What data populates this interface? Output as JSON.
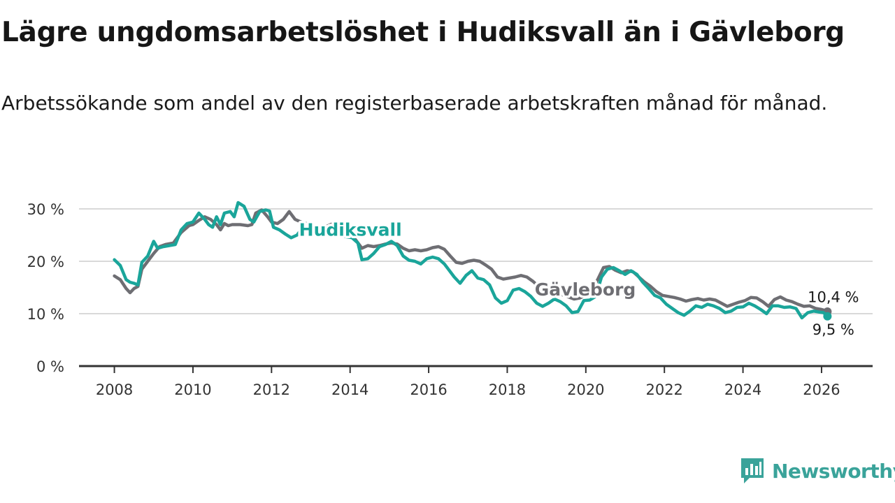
{
  "title": "Lägre ungdomsarbetslöshet i Hudiksvall än i Gävleborg",
  "subtitle": "Arbetssökande som andel av den registerbaserade arbetskraften månad för månad.",
  "brand": {
    "name": "Newsworthy",
    "icon": "newsworthy-logo-icon"
  },
  "colors": {
    "hudiksvall": "#1aa59a",
    "gavleborg": "#6e6e73",
    "grid": "#d9d9d9",
    "axis": "#333333"
  },
  "chart_data": {
    "type": "line",
    "title": "Lägre ungdomsarbetslöshet i Hudiksvall än i Gävleborg",
    "xlabel": "",
    "ylabel": "",
    "xlim": [
      2007.1,
      2027.3
    ],
    "ylim": [
      0,
      30
    ],
    "x_ticks": [
      2008,
      2010,
      2012,
      2014,
      2016,
      2018,
      2020,
      2022,
      2024,
      2026
    ],
    "x_tick_labels": [
      "2008",
      "2010",
      "2012",
      "2014",
      "2016",
      "2018",
      "2020",
      "2022",
      "2024",
      "2026"
    ],
    "y_ticks": [
      0,
      10,
      20,
      30
    ],
    "y_tick_labels": [
      "0 %",
      "10 %",
      "20 %",
      "30 %"
    ],
    "grid": true,
    "legend": "inline labels",
    "series": [
      {
        "name": "Gävleborg",
        "label": "Gävleborg",
        "end_label": "10,4 %",
        "color": "#6e6e73",
        "points": [
          [
            2008.0,
            17.2
          ],
          [
            2008.15,
            16.5
          ],
          [
            2008.3,
            14.8
          ],
          [
            2008.4,
            14.0
          ],
          [
            2008.5,
            14.8
          ],
          [
            2008.6,
            15.2
          ],
          [
            2008.7,
            18.5
          ],
          [
            2008.85,
            20.0
          ],
          [
            2009.0,
            21.5
          ],
          [
            2009.15,
            22.8
          ],
          [
            2009.3,
            23.2
          ],
          [
            2009.5,
            23.5
          ],
          [
            2009.7,
            25.5
          ],
          [
            2009.9,
            26.8
          ],
          [
            2010.0,
            27.0
          ],
          [
            2010.15,
            27.8
          ],
          [
            2010.3,
            28.5
          ],
          [
            2010.45,
            28.0
          ],
          [
            2010.6,
            27.0
          ],
          [
            2010.7,
            26.0
          ],
          [
            2010.8,
            27.2
          ],
          [
            2010.9,
            26.8
          ],
          [
            2011.0,
            27.0
          ],
          [
            2011.2,
            27.0
          ],
          [
            2011.4,
            26.8
          ],
          [
            2011.5,
            27.0
          ],
          [
            2011.6,
            29.2
          ],
          [
            2011.75,
            29.8
          ],
          [
            2011.9,
            28.5
          ],
          [
            2012.0,
            27.5
          ],
          [
            2012.15,
            27.2
          ],
          [
            2012.3,
            28.0
          ],
          [
            2012.45,
            29.5
          ],
          [
            2012.6,
            28.0
          ],
          [
            2012.75,
            27.5
          ],
          [
            2012.9,
            27.2
          ],
          [
            2013.05,
            26.5
          ],
          [
            2013.2,
            26.0
          ],
          [
            2013.35,
            26.5
          ],
          [
            2013.5,
            27.0
          ],
          [
            2013.65,
            27.4
          ],
          [
            2013.8,
            26.2
          ],
          [
            2014.0,
            25.5
          ],
          [
            2014.15,
            24.0
          ],
          [
            2014.3,
            22.5
          ],
          [
            2014.45,
            23.0
          ],
          [
            2014.6,
            22.8
          ],
          [
            2014.75,
            23.0
          ],
          [
            2014.9,
            23.3
          ],
          [
            2015.05,
            23.5
          ],
          [
            2015.2,
            23.3
          ],
          [
            2015.35,
            22.5
          ],
          [
            2015.5,
            22.0
          ],
          [
            2015.65,
            22.2
          ],
          [
            2015.8,
            22.0
          ],
          [
            2015.95,
            22.2
          ],
          [
            2016.1,
            22.6
          ],
          [
            2016.25,
            22.8
          ],
          [
            2016.4,
            22.3
          ],
          [
            2016.55,
            21.0
          ],
          [
            2016.7,
            19.8
          ],
          [
            2016.85,
            19.6
          ],
          [
            2017.0,
            20.0
          ],
          [
            2017.15,
            20.2
          ],
          [
            2017.3,
            20.0
          ],
          [
            2017.45,
            19.3
          ],
          [
            2017.6,
            18.5
          ],
          [
            2017.75,
            17.0
          ],
          [
            2017.9,
            16.6
          ],
          [
            2018.05,
            16.8
          ],
          [
            2018.2,
            17.0
          ],
          [
            2018.35,
            17.3
          ],
          [
            2018.5,
            17.0
          ],
          [
            2018.65,
            16.2
          ],
          [
            2018.8,
            15.2
          ],
          [
            2018.95,
            14.2
          ],
          [
            2019.1,
            13.8
          ],
          [
            2019.25,
            14.0
          ],
          [
            2019.4,
            13.6
          ],
          [
            2019.55,
            13.2
          ],
          [
            2019.7,
            12.8
          ],
          [
            2019.85,
            13.0
          ],
          [
            2020.0,
            13.5
          ],
          [
            2020.15,
            14.5
          ],
          [
            2020.3,
            16.5
          ],
          [
            2020.45,
            18.8
          ],
          [
            2020.6,
            19.0
          ],
          [
            2020.75,
            18.3
          ],
          [
            2020.9,
            17.8
          ],
          [
            2021.05,
            18.2
          ],
          [
            2021.2,
            18.0
          ],
          [
            2021.35,
            17.0
          ],
          [
            2021.5,
            16.0
          ],
          [
            2021.65,
            15.2
          ],
          [
            2021.8,
            14.2
          ],
          [
            2021.95,
            13.5
          ],
          [
            2022.1,
            13.3
          ],
          [
            2022.25,
            13.1
          ],
          [
            2022.4,
            12.8
          ],
          [
            2022.55,
            12.4
          ],
          [
            2022.7,
            12.7
          ],
          [
            2022.85,
            12.9
          ],
          [
            2023.0,
            12.6
          ],
          [
            2023.15,
            12.8
          ],
          [
            2023.3,
            12.6
          ],
          [
            2023.45,
            12.0
          ],
          [
            2023.6,
            11.4
          ],
          [
            2023.75,
            11.8
          ],
          [
            2023.9,
            12.2
          ],
          [
            2024.05,
            12.5
          ],
          [
            2024.2,
            13.1
          ],
          [
            2024.35,
            13.0
          ],
          [
            2024.5,
            12.3
          ],
          [
            2024.65,
            11.4
          ],
          [
            2024.8,
            12.7
          ],
          [
            2024.95,
            13.2
          ],
          [
            2025.1,
            12.6
          ],
          [
            2025.25,
            12.3
          ],
          [
            2025.4,
            11.8
          ],
          [
            2025.55,
            11.4
          ],
          [
            2025.7,
            11.5
          ],
          [
            2025.85,
            11.0
          ],
          [
            2026.0,
            10.8
          ],
          [
            2026.1,
            10.6
          ],
          [
            2026.15,
            10.4
          ]
        ]
      },
      {
        "name": "Hudiksvall",
        "label": "Hudiksvall",
        "end_label": "9,5 %",
        "color": "#1aa59a",
        "points": [
          [
            2008.0,
            20.3
          ],
          [
            2008.15,
            19.2
          ],
          [
            2008.3,
            16.5
          ],
          [
            2008.4,
            16.0
          ],
          [
            2008.5,
            15.8
          ],
          [
            2008.6,
            15.5
          ],
          [
            2008.7,
            19.8
          ],
          [
            2008.85,
            21.0
          ],
          [
            2009.0,
            23.8
          ],
          [
            2009.1,
            22.5
          ],
          [
            2009.25,
            22.8
          ],
          [
            2009.4,
            23.0
          ],
          [
            2009.55,
            23.2
          ],
          [
            2009.7,
            26.0
          ],
          [
            2009.85,
            27.2
          ],
          [
            2010.0,
            27.5
          ],
          [
            2010.15,
            29.2
          ],
          [
            2010.3,
            28.0
          ],
          [
            2010.4,
            27.0
          ],
          [
            2010.5,
            26.5
          ],
          [
            2010.6,
            28.5
          ],
          [
            2010.7,
            27.0
          ],
          [
            2010.8,
            29.2
          ],
          [
            2010.95,
            29.5
          ],
          [
            2011.05,
            28.5
          ],
          [
            2011.15,
            31.2
          ],
          [
            2011.3,
            30.5
          ],
          [
            2011.45,
            28.0
          ],
          [
            2011.55,
            27.5
          ],
          [
            2011.7,
            29.5
          ],
          [
            2011.85,
            29.8
          ],
          [
            2011.95,
            29.6
          ],
          [
            2012.05,
            26.5
          ],
          [
            2012.2,
            26.0
          ],
          [
            2012.35,
            25.2
          ],
          [
            2012.5,
            24.5
          ],
          [
            2012.65,
            25.0
          ],
          [
            2012.8,
            26.5
          ],
          [
            2012.9,
            27.0
          ],
          [
            2013.05,
            26.0
          ],
          [
            2013.3,
            25.5
          ],
          [
            2013.55,
            25.0
          ],
          [
            2013.8,
            24.8
          ],
          [
            2014.05,
            24.5
          ],
          [
            2014.2,
            23.5
          ],
          [
            2014.3,
            20.3
          ],
          [
            2014.45,
            20.5
          ],
          [
            2014.6,
            21.5
          ],
          [
            2014.75,
            22.8
          ],
          [
            2014.9,
            23.2
          ],
          [
            2015.05,
            23.8
          ],
          [
            2015.2,
            23.0
          ],
          [
            2015.35,
            21.0
          ],
          [
            2015.5,
            20.2
          ],
          [
            2015.65,
            20.0
          ],
          [
            2015.8,
            19.5
          ],
          [
            2015.95,
            20.5
          ],
          [
            2016.1,
            20.8
          ],
          [
            2016.25,
            20.5
          ],
          [
            2016.4,
            19.5
          ],
          [
            2016.5,
            18.5
          ],
          [
            2016.65,
            17.0
          ],
          [
            2016.8,
            15.8
          ],
          [
            2016.95,
            17.3
          ],
          [
            2017.1,
            18.2
          ],
          [
            2017.25,
            16.8
          ],
          [
            2017.4,
            16.5
          ],
          [
            2017.55,
            15.5
          ],
          [
            2017.7,
            13.0
          ],
          [
            2017.85,
            12.0
          ],
          [
            2018.0,
            12.5
          ],
          [
            2018.15,
            14.5
          ],
          [
            2018.3,
            14.8
          ],
          [
            2018.45,
            14.2
          ],
          [
            2018.6,
            13.3
          ],
          [
            2018.75,
            12.0
          ],
          [
            2018.9,
            11.4
          ],
          [
            2019.05,
            12.0
          ],
          [
            2019.2,
            12.8
          ],
          [
            2019.35,
            12.3
          ],
          [
            2019.5,
            11.5
          ],
          [
            2019.65,
            10.2
          ],
          [
            2019.8,
            10.4
          ],
          [
            2019.95,
            12.5
          ],
          [
            2020.1,
            12.6
          ],
          [
            2020.25,
            13.3
          ],
          [
            2020.4,
            17.0
          ],
          [
            2020.55,
            18.5
          ],
          [
            2020.7,
            18.8
          ],
          [
            2020.85,
            18.2
          ],
          [
            2021.0,
            17.5
          ],
          [
            2021.15,
            18.2
          ],
          [
            2021.3,
            17.5
          ],
          [
            2021.45,
            16.0
          ],
          [
            2021.6,
            14.8
          ],
          [
            2021.75,
            13.5
          ],
          [
            2021.9,
            13.0
          ],
          [
            2022.05,
            11.8
          ],
          [
            2022.2,
            11.0
          ],
          [
            2022.35,
            10.2
          ],
          [
            2022.5,
            9.7
          ],
          [
            2022.65,
            10.5
          ],
          [
            2022.8,
            11.5
          ],
          [
            2022.95,
            11.2
          ],
          [
            2023.1,
            11.8
          ],
          [
            2023.25,
            11.5
          ],
          [
            2023.4,
            11.0
          ],
          [
            2023.55,
            10.2
          ],
          [
            2023.7,
            10.5
          ],
          [
            2023.85,
            11.2
          ],
          [
            2024.0,
            11.3
          ],
          [
            2024.15,
            12.0
          ],
          [
            2024.3,
            11.5
          ],
          [
            2024.45,
            10.8
          ],
          [
            2024.6,
            10.0
          ],
          [
            2024.75,
            11.5
          ],
          [
            2024.9,
            11.5
          ],
          [
            2025.05,
            11.2
          ],
          [
            2025.2,
            11.3
          ],
          [
            2025.35,
            11.0
          ],
          [
            2025.5,
            9.2
          ],
          [
            2025.65,
            10.2
          ],
          [
            2025.8,
            10.5
          ],
          [
            2025.95,
            10.3
          ],
          [
            2026.05,
            10.2
          ],
          [
            2026.15,
            9.5
          ]
        ]
      }
    ]
  }
}
